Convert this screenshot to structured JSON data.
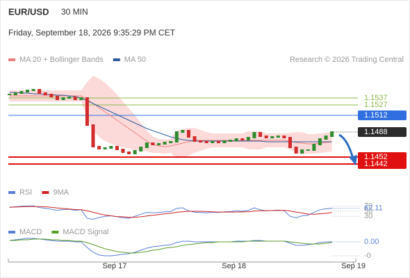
{
  "chart_data": [
    {
      "type": "candlestick",
      "title": "EUR/USD",
      "subtitle": "30 MIN",
      "date": "Friday, September 18, 2026 9:35:29 PM CET",
      "source": "Research © 2026 Trading Central",
      "up_color": "#2e8b2e",
      "down_color": "#d22b2b",
      "xlim": [
        16.11,
        19.02
      ],
      "ylim": [
        1.1416,
        1.1578
      ],
      "x": [
        16.12,
        16.17,
        16.22,
        16.27,
        16.32,
        16.37,
        16.42,
        16.47,
        16.52,
        16.57,
        16.62,
        16.67,
        16.72,
        16.77,
        16.82,
        16.87,
        16.92,
        16.97,
        17.02,
        17.07,
        17.12,
        17.17,
        17.22,
        17.27,
        17.32,
        17.37,
        17.42,
        17.47,
        17.52,
        17.57,
        17.62,
        17.67,
        17.72,
        17.77,
        17.82,
        17.87,
        17.92,
        17.97,
        18.02,
        18.07,
        18.12,
        18.17,
        18.22,
        18.27,
        18.32,
        18.37,
        18.42,
        18.47,
        18.52,
        18.57,
        18.62,
        18.67,
        18.72,
        18.77,
        18.82
      ],
      "values": [
        1.1542,
        1.1544,
        1.1546,
        1.1548,
        1.1549,
        1.1544,
        1.1542,
        1.1539,
        1.1535,
        1.1537,
        1.1538,
        1.1535,
        1.1537,
        1.1498,
        1.1467,
        1.1464,
        1.1465,
        1.1467,
        1.1463,
        1.1459,
        1.1457,
        1.1461,
        1.1466,
        1.1472,
        1.147,
        1.1471,
        1.1473,
        1.1474,
        1.1488,
        1.149,
        1.1481,
        1.1475,
        1.1474,
        1.1473,
        1.1474,
        1.1473,
        1.1475,
        1.1476,
        1.1478,
        1.1477,
        1.148,
        1.1487,
        1.1482,
        1.148,
        1.1481,
        1.1482,
        1.148,
        1.1466,
        1.1458,
        1.1462,
        1.1462,
        1.147,
        1.1478,
        1.1482,
        1.1488
      ],
      "band": {
        "color": "#fcdada",
        "upper": [
          1.1548,
          1.1548,
          1.1548,
          1.1548,
          1.1548,
          1.1548,
          1.1548,
          1.1548,
          1.1548,
          1.1548,
          1.1548,
          1.1548,
          1.1548,
          1.156,
          1.1569,
          1.1565,
          1.1559,
          1.1551,
          1.1542,
          1.1532,
          1.1522,
          1.1512,
          1.1501,
          1.149,
          1.1482,
          1.1478,
          1.1477,
          1.1478,
          1.149,
          1.1492,
          1.1494,
          1.1494,
          1.1491,
          1.1488,
          1.1486,
          1.1486,
          1.1486,
          1.1486,
          1.1486,
          1.1486,
          1.1489,
          1.1489,
          1.1489,
          1.1486,
          1.1486,
          1.1486,
          1.1486,
          1.1487,
          1.1488,
          1.1488,
          1.1485,
          1.1485,
          1.1486,
          1.1487,
          1.1488
        ],
        "lower": [
          1.1532,
          1.1532,
          1.1532,
          1.1532,
          1.1532,
          1.1532,
          1.1532,
          1.1532,
          1.1532,
          1.1532,
          1.1532,
          1.1532,
          1.1532,
          1.151,
          1.1489,
          1.1481,
          1.1475,
          1.1471,
          1.1468,
          1.1466,
          1.1464,
          1.1462,
          1.1461,
          1.146,
          1.1458,
          1.1458,
          1.1457,
          1.1458,
          1.145,
          1.1452,
          1.1454,
          1.1458,
          1.1461,
          1.1464,
          1.1466,
          1.1466,
          1.1466,
          1.1466,
          1.1466,
          1.1466,
          1.1463,
          1.1463,
          1.1463,
          1.1466,
          1.1466,
          1.1466,
          1.1466,
          1.1463,
          1.1458,
          1.1456,
          1.1457,
          1.1457,
          1.1458,
          1.1459,
          1.146
        ]
      },
      "series": [
        {
          "name": "MA 20 + Bollinger Bands",
          "color": "#f08080",
          "values": [
            1.154,
            1.154,
            1.154,
            1.154,
            1.154,
            1.154,
            1.154,
            1.154,
            1.154,
            1.154,
            1.154,
            1.154,
            1.154,
            1.1535,
            1.1529,
            1.1523,
            1.1517,
            1.1511,
            1.1505,
            1.1499,
            1.1493,
            1.1487,
            1.1481,
            1.1475,
            1.147,
            1.1468,
            1.1467,
            1.1468,
            1.147,
            1.1472,
            1.1474,
            1.1476,
            1.1476,
            1.1476,
            1.1476,
            1.1476,
            1.1476,
            1.1476,
            1.1476,
            1.1476,
            1.1476,
            1.1476,
            1.1476,
            1.1476,
            1.1476,
            1.1476,
            1.1476,
            1.1475,
            1.1473,
            1.1472,
            1.1471,
            1.1471,
            1.1472,
            1.1473,
            1.1474
          ]
        },
        {
          "name": "MA 50",
          "color": "#2e5c9e",
          "values": [
            1.1545,
            1.1545,
            1.1544,
            1.1544,
            1.1543,
            1.1543,
            1.1542,
            1.1542,
            1.1541,
            1.1541,
            1.154,
            1.1539,
            1.1537,
            1.1533,
            1.1529,
            1.1525,
            1.1521,
            1.1517,
            1.1513,
            1.1509,
            1.1505,
            1.1501,
            1.1497,
            1.1493,
            1.149,
            1.1487,
            1.1484,
            1.1481,
            1.1479,
            1.1477,
            1.1476,
            1.1475,
            1.1475,
            1.1475,
            1.1475,
            1.1475,
            1.1475,
            1.1475,
            1.1475,
            1.1475,
            1.1475,
            1.1475,
            1.1475,
            1.1474,
            1.1474,
            1.1474,
            1.1474,
            1.1474,
            1.1474,
            1.1474,
            1.1474,
            1.1474,
            1.1474,
            1.1474,
            1.1474
          ]
        }
      ],
      "levels": [
        {
          "value": 1.1537,
          "color": "#8dbb4c",
          "style": "text"
        },
        {
          "value": 1.1527,
          "color": "#8dbb4c",
          "style": "text"
        },
        {
          "value": 1.1512,
          "color": "#2f6fe0",
          "style": "box"
        },
        {
          "value": 1.1488,
          "color": "#2b2b2b",
          "style": "last"
        },
        {
          "value": 1.1452,
          "color": "#e01010",
          "style": "box"
        },
        {
          "value": 1.1442,
          "color": "#e01010",
          "style": "box"
        }
      ]
    },
    {
      "type": "line",
      "xlim": [
        16.11,
        19.02
      ],
      "ylim": [
        0,
        100
      ],
      "yticks": [
        70,
        50,
        30
      ],
      "x": [
        16.12,
        16.17,
        16.22,
        16.27,
        16.32,
        16.37,
        16.42,
        16.47,
        16.52,
        16.57,
        16.62,
        16.67,
        16.72,
        16.77,
        16.82,
        16.87,
        16.92,
        16.97,
        17.02,
        17.07,
        17.12,
        17.17,
        17.22,
        17.27,
        17.32,
        17.37,
        17.42,
        17.47,
        17.52,
        17.57,
        17.62,
        17.67,
        17.72,
        17.77,
        17.82,
        17.87,
        17.92,
        17.97,
        18.02,
        18.07,
        18.12,
        18.17,
        18.22,
        18.27,
        18.32,
        18.37,
        18.42,
        18.47,
        18.52,
        18.57,
        18.62,
        18.67,
        18.72,
        18.77,
        18.82
      ],
      "series": [
        {
          "name": "RSI",
          "color": "#5b7fd6",
          "show_last_value": true,
          "values": [
            66,
            68,
            70,
            71,
            72,
            65,
            62,
            58,
            54,
            57,
            58,
            54,
            56,
            22,
            18,
            25,
            30,
            32,
            28,
            24,
            22,
            30,
            38,
            46,
            44,
            45,
            48,
            49,
            62,
            64,
            52,
            46,
            45,
            44,
            46,
            45,
            48,
            49,
            52,
            50,
            54,
            64,
            56,
            52,
            53,
            55,
            52,
            30,
            24,
            32,
            34,
            46,
            56,
            60,
            62.11
          ]
        },
        {
          "name": "9MA",
          "color": "#d22222",
          "values": [
            66,
            67,
            68,
            69,
            69,
            69,
            68,
            66,
            63,
            61,
            59,
            57,
            56,
            52,
            46,
            40,
            35,
            32,
            29,
            28,
            26,
            26,
            28,
            31,
            34,
            37,
            40,
            42,
            46,
            48,
            50,
            50,
            50,
            49,
            48,
            47,
            47,
            47,
            47,
            48,
            48,
            51,
            52,
            52,
            53,
            53,
            54,
            51,
            47,
            43,
            39,
            38,
            40,
            42,
            45
          ]
        }
      ]
    },
    {
      "type": "line",
      "xlim": [
        16.11,
        19.02
      ],
      "ylim": [
        -0.0027,
        0.002
      ],
      "yticks": [
        {
          "value": -0.002,
          "label": "-0"
        }
      ],
      "xticks": [
        {
          "value": 17,
          "label": "Sep 17"
        },
        {
          "value": 18,
          "label": "Sep 18"
        },
        {
          "value": 19,
          "label": "Sep 19"
        }
      ],
      "x": [
        16.12,
        16.17,
        16.22,
        16.27,
        16.32,
        16.37,
        16.42,
        16.47,
        16.52,
        16.57,
        16.62,
        16.67,
        16.72,
        16.77,
        16.82,
        16.87,
        16.92,
        16.97,
        17.02,
        17.07,
        17.12,
        17.17,
        17.22,
        17.27,
        17.32,
        17.37,
        17.42,
        17.47,
        17.52,
        17.57,
        17.62,
        17.67,
        17.72,
        17.77,
        17.82,
        17.87,
        17.92,
        17.97,
        18.02,
        18.07,
        18.12,
        18.17,
        18.22,
        18.27,
        18.32,
        18.37,
        18.42,
        18.47,
        18.52,
        18.57,
        18.62,
        18.67,
        18.72,
        18.77,
        18.82
      ],
      "series": [
        {
          "name": "MACD",
          "color": "#5b7fd6",
          "show_last_value": true,
          "values": [
            0.0002,
            0.0003,
            0.0004,
            0.0005,
            0.0005,
            0.0004,
            0.0003,
            0.0002,
            0.0001,
            0.0001,
            0.0001,
            0,
            0,
            -0.0008,
            -0.0015,
            -0.0019,
            -0.002,
            -0.002,
            -0.0019,
            -0.0018,
            -0.0017,
            -0.0015,
            -0.0012,
            -0.0009,
            -0.0007,
            -0.0006,
            -0.0005,
            -0.0004,
            -0.0001,
            0.0001,
            0.0001,
            0,
            0,
            0,
            0,
            0,
            0,
            0,
            0.0001,
            0.0001,
            0.0001,
            0.0002,
            0.0002,
            0.0001,
            0.0001,
            0.0001,
            0.0001,
            -0.0002,
            -0.0005,
            -0.0005,
            -0.0004,
            -0.0003,
            -0.0001,
            0,
            0
          ],
          "value_labels": [
            null,
            null,
            null,
            null,
            null,
            null,
            null,
            null,
            null,
            null,
            null,
            null,
            null,
            null,
            null,
            null,
            null,
            null,
            null,
            null,
            null,
            null,
            null,
            null,
            null,
            null,
            null,
            null,
            null,
            null,
            null,
            null,
            null,
            null,
            null,
            null,
            null,
            null,
            null,
            null,
            null,
            null,
            null,
            null,
            null,
            null,
            null,
            null,
            null,
            null,
            null,
            null,
            null,
            null,
            "0.00"
          ]
        },
        {
          "name": "MACD Signal",
          "color": "#5a9e2a",
          "values": [
            0.0002,
            0.0002,
            0.0003,
            0.0003,
            0.0004,
            0.0004,
            0.0004,
            0.0003,
            0.0003,
            0.0002,
            0.0002,
            0.0001,
            0.0001,
            -0.0001,
            -0.0004,
            -0.0007,
            -0.001,
            -0.0012,
            -0.0014,
            -0.0015,
            -0.0016,
            -0.0016,
            -0.0015,
            -0.0014,
            -0.0012,
            -0.0011,
            -0.0009,
            -0.0008,
            -0.0007,
            -0.0005,
            -0.0004,
            -0.0003,
            -0.0002,
            -0.0001,
            -0.0001,
            0,
            0,
            0,
            0,
            0,
            0.0001,
            0.0001,
            0.0001,
            0.0001,
            0.0001,
            0.0001,
            0.0001,
            0,
            -0.0001,
            -0.0002,
            -0.0003,
            -0.0003,
            -0.0003,
            -0.0002,
            -0.0001
          ]
        }
      ]
    }
  ]
}
